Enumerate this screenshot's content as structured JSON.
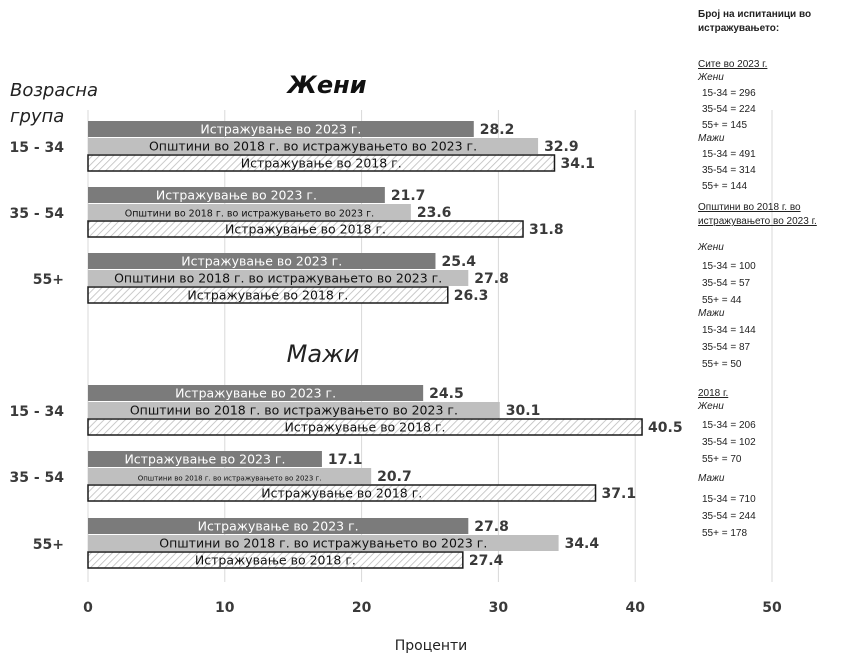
{
  "chart_data": {
    "type": "bar",
    "orientation": "horizontal",
    "xlabel": "Проценти",
    "xlim": [
      0,
      50
    ],
    "xticks": [
      0,
      10,
      20,
      30,
      40,
      50
    ],
    "grid": true,
    "row_axis_label": "Возрасна група",
    "panels": [
      {
        "title": "Жени",
        "groups": [
          {
            "label": "15 - 34",
            "bars": [
              {
                "label": "Истражување во 2023 г.",
                "value": 28.2,
                "value_text": "28.2",
                "style": "dark"
              },
              {
                "label": "Општини во 2018 г. во истражувањето во 2023 г.",
                "value": 32.9,
                "value_text": "32.9",
                "style": "light"
              },
              {
                "label": "Истражување во 2018 г.",
                "value": 34.1,
                "value_text": "34.1",
                "style": "hatch"
              }
            ]
          },
          {
            "label": "35 - 54",
            "bars": [
              {
                "label": "Истражување во 2023 г.",
                "value": 21.7,
                "value_text": "21.7",
                "style": "dark"
              },
              {
                "label": "Општини во 2018 г. во истражувањето во 2023 г.",
                "value": 23.6,
                "value_text": "23.6",
                "style": "light"
              },
              {
                "label": "Истражување во 2018 г.",
                "value": 31.8,
                "value_text": "31.8",
                "style": "hatch"
              }
            ]
          },
          {
            "label": "55+",
            "bars": [
              {
                "label": "Истражување во 2023 г.",
                "value": 25.4,
                "value_text": "25.4",
                "style": "dark"
              },
              {
                "label": "Општини во 2018 г. во истражувањето во 2023 г.",
                "value": 27.8,
                "value_text": "27.8",
                "style": "light"
              },
              {
                "label": "Истражување во 2018 г.",
                "value": 26.3,
                "value_text": "26.3",
                "style": "hatch"
              }
            ]
          }
        ]
      },
      {
        "title": "Мажи",
        "groups": [
          {
            "label": "15 - 34",
            "bars": [
              {
                "label": "Истражување во 2023 г.",
                "value": 24.5,
                "value_text": "24.5",
                "style": "dark"
              },
              {
                "label": "Општини во 2018 г. во истражувањето во 2023 г.",
                "value": 30.1,
                "value_text": "30.1",
                "style": "light"
              },
              {
                "label": "Истражување во 2018 г.",
                "value": 40.5,
                "value_text": "40.5",
                "style": "hatch"
              }
            ]
          },
          {
            "label": "35 - 54",
            "bars": [
              {
                "label": "Истражување во 2023 г.",
                "value": 17.1,
                "value_text": "17.1",
                "style": "dark"
              },
              {
                "label": "Општини во 2018 г. во истражувањето во 2023 г.",
                "value": 20.7,
                "value_text": "20.7",
                "style": "light"
              },
              {
                "label": "Истражување во 2018 г.",
                "value": 37.1,
                "value_text": "37.1",
                "style": "hatch"
              }
            ]
          },
          {
            "label": "55+",
            "bars": [
              {
                "label": "Истражување во 2023 г.",
                "value": 27.8,
                "value_text": "27.8",
                "style": "dark"
              },
              {
                "label": "Општини во 2018 г. во истражувањето во 2023 г.",
                "value": 34.4,
                "value_text": "34.4",
                "style": "light"
              },
              {
                "label": "Истражување во 2018 г.",
                "value": 27.4,
                "value_text": "27.4",
                "style": "hatch"
              }
            ]
          }
        ]
      }
    ],
    "colors": {
      "dark": "#7b7b7b",
      "light": "#bfbfbf",
      "hatch_line": "#bdbdbd",
      "outline": "#1a1a1a",
      "grid": "#d9d9d9",
      "text": "#333333"
    }
  },
  "sample_sizes": {
    "heading": "Број на испитаници во истражувањето:",
    "sections": [
      {
        "title": "Сите во 2023 г.",
        "groups": [
          {
            "name": "Жени",
            "rows": [
              "15-34 = 296",
              "35-54 = 224",
              "55+ = 145"
            ]
          },
          {
            "name": "Мажи",
            "rows": [
              "15-34 = 491",
              "35-54 = 314",
              "55+ = 144"
            ]
          }
        ]
      },
      {
        "title": "Општини во 2018 г. во истражувањето во 2023 г.",
        "groups": [
          {
            "name": "Жени",
            "rows": [
              "15-34 = 100",
              "35-54 = 57",
              "55+ = 44"
            ]
          },
          {
            "name": "Мажи",
            "rows": [
              "15-34 = 144",
              "35-54 = 87",
              "55+ = 50"
            ]
          }
        ]
      },
      {
        "title": "2018 г.",
        "groups": [
          {
            "name": "Жени",
            "rows": [
              "15-34 = 206",
              "35-54 = 102",
              "55+ = 70"
            ]
          },
          {
            "name": "Мажи",
            "rows": [
              "15-34 = 710",
              "35-54 = 244",
              "55+ = 178"
            ]
          }
        ]
      }
    ]
  }
}
